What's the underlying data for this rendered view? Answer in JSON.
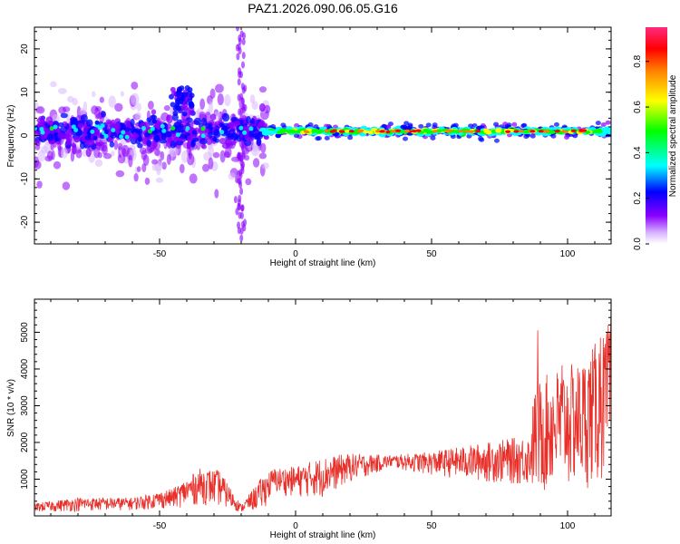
{
  "title": "PAZ1.2026.090.06.05.G16",
  "colors": {
    "snr_line": "#e8302a",
    "axis": "#000000",
    "background": "#ffffff"
  },
  "chart_data": [
    {
      "type": "heatmap",
      "xlabel": "Height of straight line (km)",
      "ylabel": "Frequency (Hz)",
      "xlim": [
        -96,
        116
      ],
      "ylim": [
        -25,
        25
      ],
      "x_ticks": [
        -50,
        0,
        50,
        100
      ],
      "y_ticks": [
        -20,
        -10,
        0,
        10,
        20
      ],
      "ridge_center_hz": 1,
      "note": "Spectrogram: noisy purple energy below ~-10 km, narrow strong band near 0-1 Hz above -10 km",
      "colorbar": {
        "label": "Normalized spectral amplitude",
        "range": [
          0.0,
          0.95
        ],
        "ticks": [
          0.0,
          0.2,
          0.4,
          0.6,
          0.8
        ]
      }
    },
    {
      "type": "line",
      "xlabel": "Height of straight line (km)",
      "ylabel": "SNR (10 * v/v)",
      "xlim": [
        -96,
        116
      ],
      "ylim": [
        0,
        5900
      ],
      "x_ticks": [
        -50,
        0,
        50,
        100
      ],
      "y_ticks": [
        1000,
        2000,
        3000,
        4000,
        5000
      ],
      "envelope": {
        "x": [
          -96,
          -80,
          -60,
          -45,
          -35,
          -28,
          -20,
          -12,
          -8,
          0,
          10,
          20,
          35,
          50,
          70,
          86,
          88,
          95,
          105,
          112,
          116
        ],
        "lower": [
          100,
          120,
          150,
          200,
          300,
          250,
          100,
          150,
          600,
          500,
          500,
          900,
          1300,
          1100,
          900,
          800,
          500,
          600,
          700,
          800,
          900
        ],
        "upper": [
          350,
          500,
          500,
          750,
          1300,
          1250,
          300,
          1100,
          1300,
          1350,
          1600,
          1700,
          1650,
          1750,
          2000,
          2200,
          3600,
          4000,
          4200,
          4900,
          5100
        ]
      },
      "peaks": [
        {
          "x": 89,
          "y": 5050
        },
        {
          "x": 98,
          "y": 4100
        },
        {
          "x": 112,
          "y": 4850
        },
        {
          "x": 115,
          "y": 5200
        },
        {
          "x": 116,
          "y": 5800
        }
      ]
    }
  ]
}
